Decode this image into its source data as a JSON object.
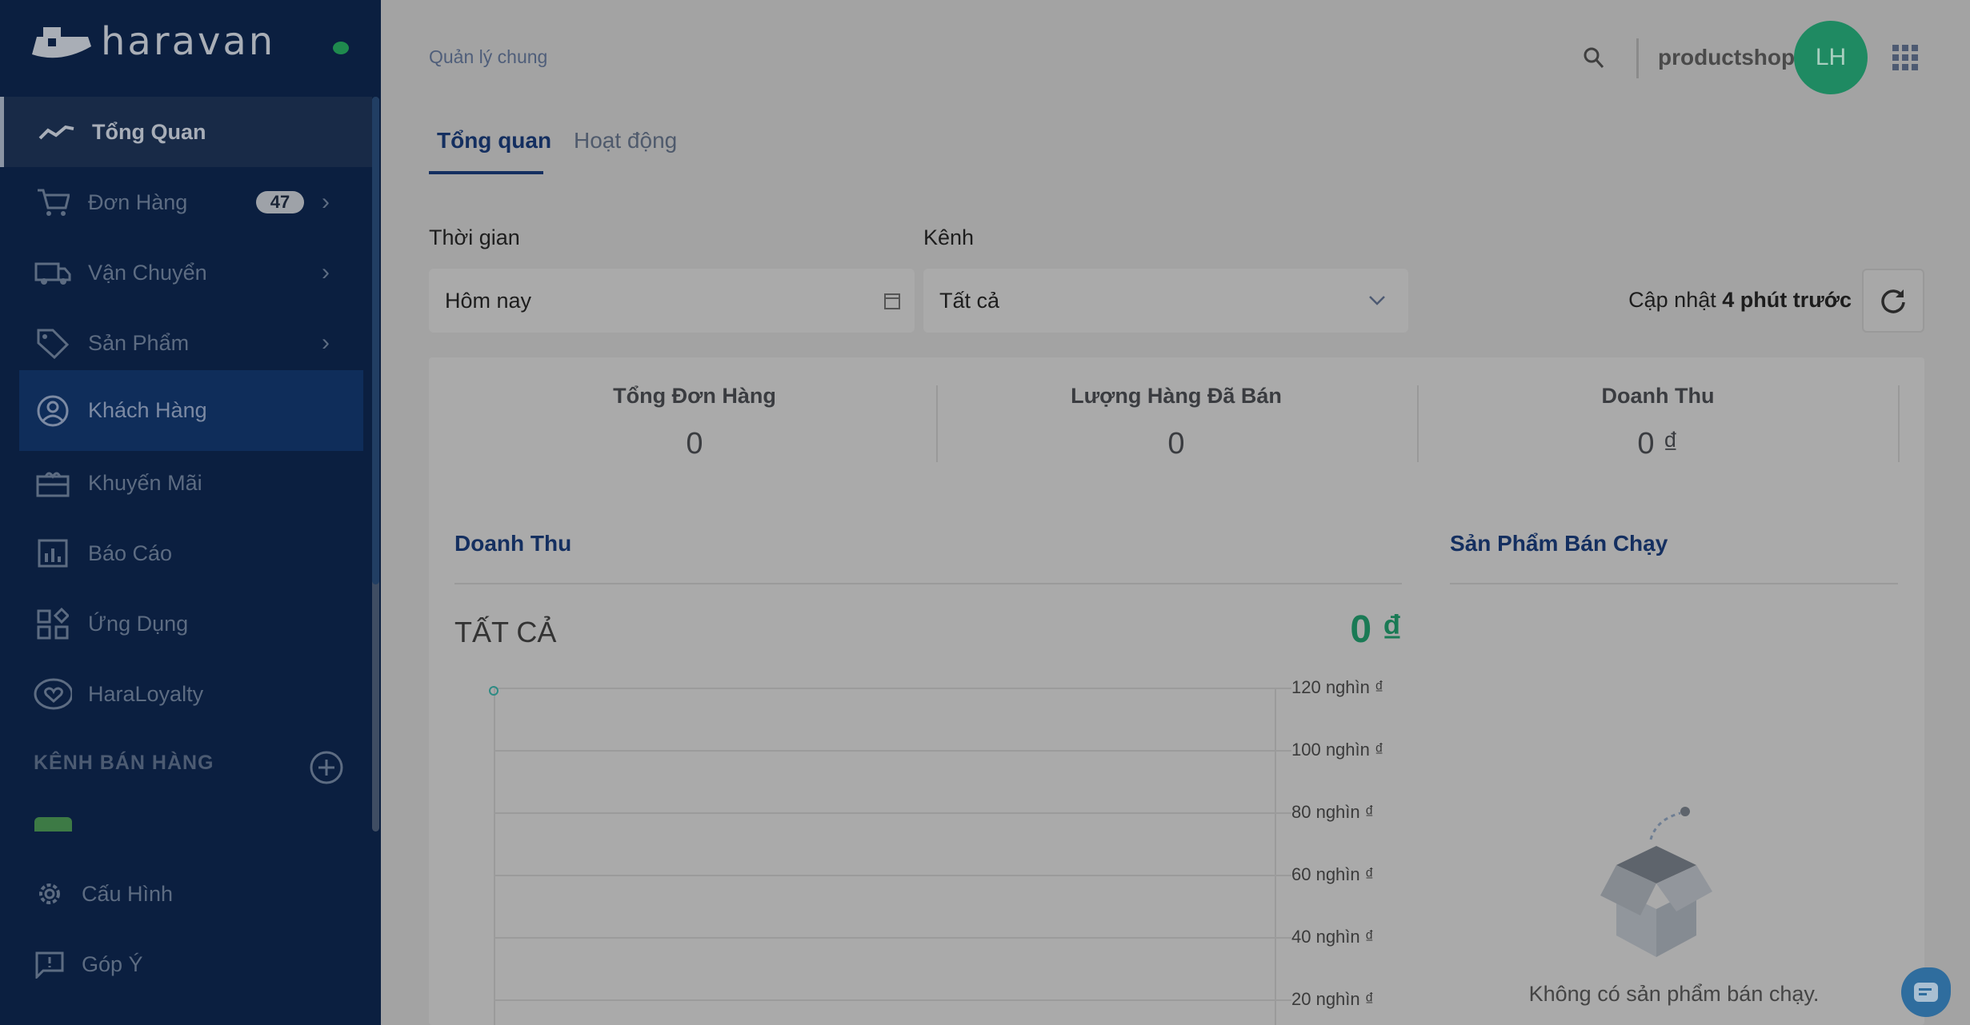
{
  "brand": {
    "name": "haravan"
  },
  "sidebar": {
    "items": [
      {
        "label": "Tổng Quan",
        "icon": "trend-line-icon"
      },
      {
        "label": "Đơn Hàng",
        "icon": "cart-icon",
        "badge": "47"
      },
      {
        "label": "Vận Chuyển",
        "icon": "truck-icon"
      },
      {
        "label": "Sản Phẩm",
        "icon": "tag-icon"
      },
      {
        "label": "Khách Hàng",
        "icon": "user-circle-icon"
      },
      {
        "label": "Khuyến Mãi",
        "icon": "gift-icon"
      },
      {
        "label": "Báo Cáo",
        "icon": "bar-chart-icon"
      },
      {
        "label": "Ứng Dụng",
        "icon": "apps-icon"
      },
      {
        "label": "HaraLoyalty",
        "icon": "heart-icon"
      }
    ],
    "channels_title": "KÊNH BÁN HÀNG",
    "bottom": [
      {
        "label": "Cấu Hình",
        "icon": "gear-icon"
      },
      {
        "label": "Góp Ý",
        "icon": "feedback-icon"
      }
    ]
  },
  "header": {
    "breadcrumb": "Quản lý chung",
    "shop": "productshop",
    "avatar": "LH"
  },
  "tabs": [
    {
      "label": "Tổng quan",
      "active": true
    },
    {
      "label": "Hoạt động",
      "active": false
    }
  ],
  "filters": {
    "time_label": "Thời gian",
    "time_value": "Hôm nay",
    "channel_label": "Kênh",
    "channel_value": "Tất cả",
    "updated_prefix": "Cập nhật",
    "updated_time": "4 phút trước"
  },
  "stats": [
    {
      "title": "Tổng Đơn Hàng",
      "value": "0"
    },
    {
      "title": "Lượng Hàng Đã Bán",
      "value": "0"
    },
    {
      "title": "Doanh Thu",
      "value": "0 ₫"
    }
  ],
  "revenue": {
    "title": "Doanh Thu",
    "channel": "TẤT CẢ",
    "total": "0 ₫"
  },
  "best_sellers": {
    "title": "Sản Phẩm Bán Chạy",
    "empty": "Không có sản phẩm bán chạy."
  },
  "chart_data": {
    "type": "line",
    "y_ticks": [
      "120 nghìn ₫",
      "100 nghìn ₫",
      "80 nghìn ₫",
      "60 nghìn ₫",
      "40 nghìn ₫",
      "20 nghìn ₫"
    ],
    "ylim": [
      0,
      120000
    ],
    "y_axis_side": "right",
    "grid": true,
    "accent": "#2e8b84"
  },
  "colors": {
    "sidebar": "#0b1f40",
    "accent_green": "#1f8a62",
    "brand_blue": "#142f60"
  }
}
